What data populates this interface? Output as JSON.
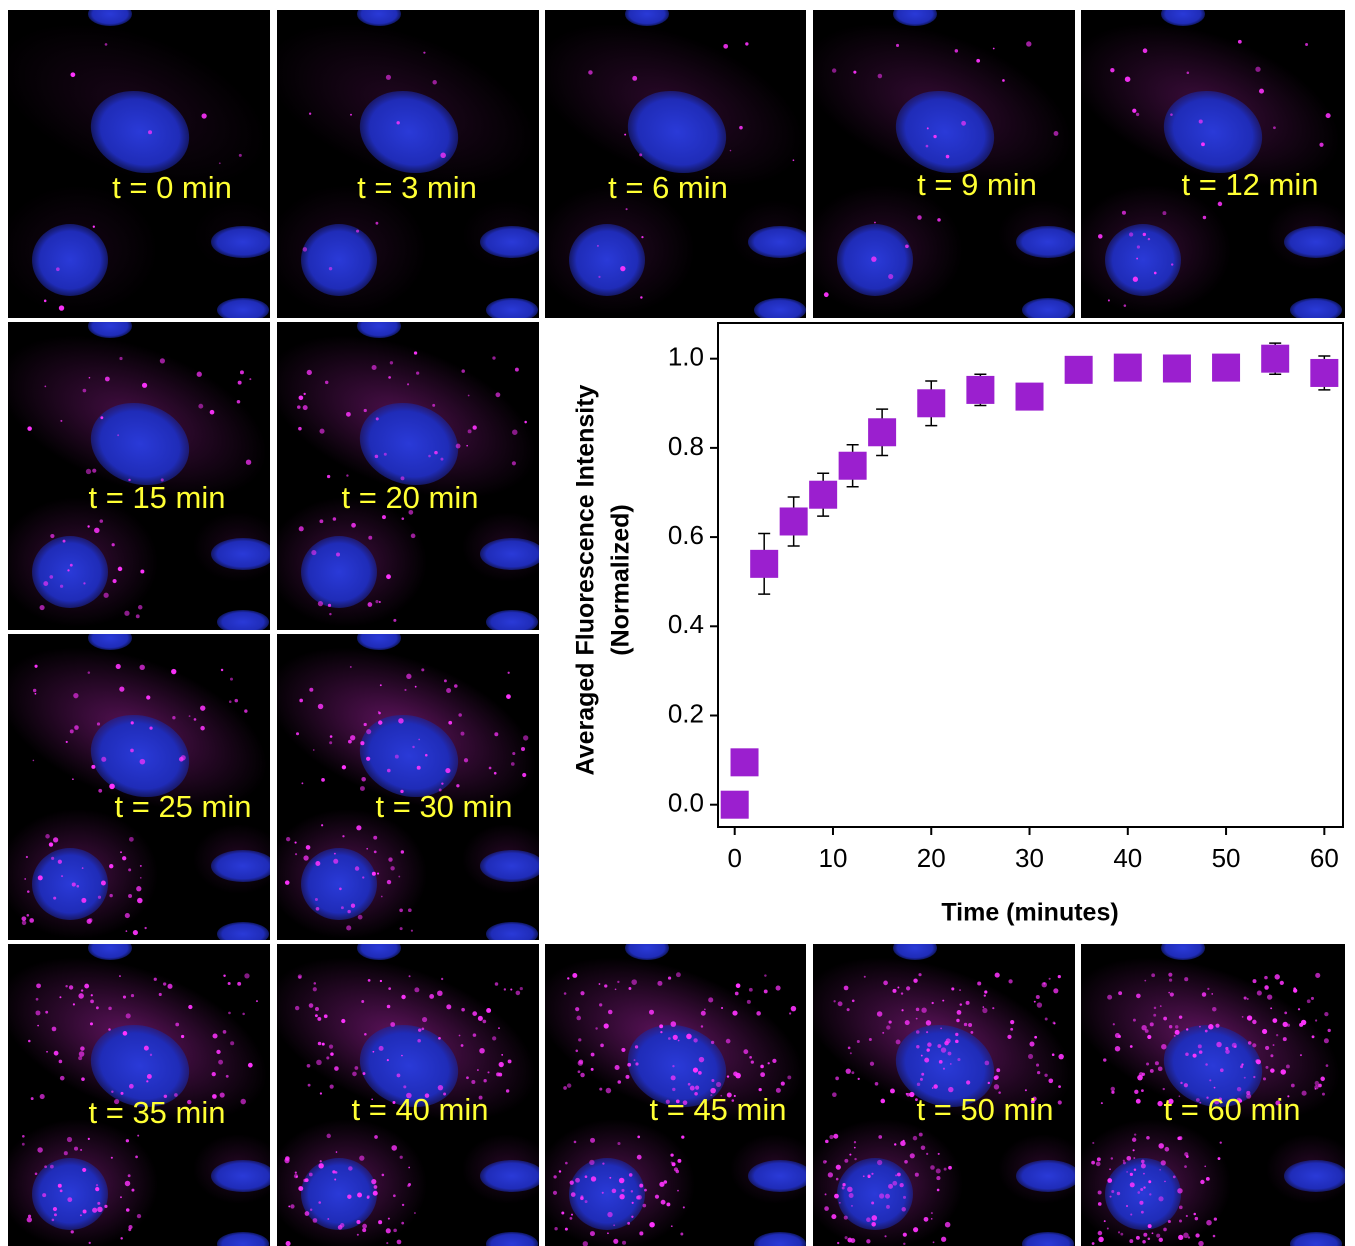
{
  "panels": [
    {
      "label": "t = 0 min"
    },
    {
      "label": "t = 3 min"
    },
    {
      "label": "t = 6 min"
    },
    {
      "label": "t = 9 min"
    },
    {
      "label": "t = 12 min"
    },
    {
      "label": "t = 15 min"
    },
    {
      "label": "t = 20 min"
    },
    {
      "label": "t = 25 min"
    },
    {
      "label": "t = 30 min"
    },
    {
      "label": "t = 35 min"
    },
    {
      "label": "t = 40 min"
    },
    {
      "label": "t = 45 min"
    },
    {
      "label": "t = 50 min"
    },
    {
      "label": "t = 60 min"
    }
  ],
  "chart_data": {
    "type": "scatter",
    "xlabel": "Time (minutes)",
    "ylabel": [
      "Averaged Fluorescence Intensity",
      "(Normalized)"
    ],
    "x": [
      0,
      1,
      3,
      6,
      9,
      12,
      15,
      20,
      25,
      30,
      35,
      40,
      45,
      50,
      55,
      60
    ],
    "values": [
      0.0,
      0.095,
      0.54,
      0.635,
      0.695,
      0.76,
      0.835,
      0.9,
      0.93,
      0.915,
      0.975,
      0.98,
      0.978,
      0.98,
      1.0,
      0.968
    ],
    "errors": [
      0,
      0,
      0.068,
      0.055,
      0.048,
      0.047,
      0.052,
      0.05,
      0.035,
      0,
      0,
      0,
      0,
      0,
      0.035,
      0.038
    ],
    "color": "#9b1fcf",
    "xlim": [
      -1.7,
      61.9
    ],
    "ylim": [
      -0.05,
      1.08
    ],
    "xticks": [
      0,
      10,
      20,
      30,
      40,
      50,
      60
    ],
    "yticks": [
      {
        "value": 0,
        "label": "0.0"
      },
      0.2,
      0.4,
      0.6,
      0.8,
      {
        "value": 1,
        "label": "1.0"
      }
    ]
  }
}
